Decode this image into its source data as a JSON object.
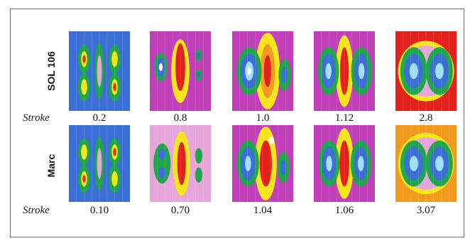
{
  "rows": [
    {
      "label": "SOL 106",
      "stroke_label": "Stroke",
      "values": [
        "0.2",
        "0.8",
        "1.0",
        "1.12",
        "2.8"
      ]
    },
    {
      "label": "Marc",
      "stroke_label": "Stroke",
      "values": [
        "0.10",
        "0.70",
        "1.04",
        "1.06",
        "3.07"
      ]
    }
  ],
  "colors": {
    "blue": "#3c6fd6",
    "cyan": "#9fe0f5",
    "green": "#1fa54a",
    "magenta": "#c13fb8",
    "pink": "#e7a6d9",
    "yellow": "#f4e51d",
    "orange": "#f29a1e",
    "red": "#e3211c",
    "white": "#ffffff"
  },
  "plots": [
    [
      {
        "bg": "blue",
        "shapes": [
          [
            "ellipse",
            0.25,
            0.35,
            0.1,
            0.18,
            "green"
          ],
          [
            "ellipse",
            0.25,
            0.7,
            0.1,
            0.18,
            "green"
          ],
          [
            "ellipse",
            0.5,
            0.5,
            0.08,
            0.35,
            "green"
          ],
          [
            "ellipse",
            0.75,
            0.35,
            0.1,
            0.18,
            "green"
          ],
          [
            "ellipse",
            0.75,
            0.7,
            0.1,
            0.18,
            "green"
          ],
          [
            "ellipse",
            0.25,
            0.35,
            0.05,
            0.1,
            "yellow"
          ],
          [
            "ellipse",
            0.25,
            0.7,
            0.05,
            0.1,
            "yellow"
          ],
          [
            "ellipse",
            0.5,
            0.5,
            0.04,
            0.2,
            "pink"
          ],
          [
            "ellipse",
            0.75,
            0.35,
            0.05,
            0.1,
            "yellow"
          ],
          [
            "ellipse",
            0.75,
            0.7,
            0.05,
            0.1,
            "yellow"
          ],
          [
            "ellipse",
            0.25,
            0.35,
            0.025,
            0.05,
            "red"
          ],
          [
            "ellipse",
            0.75,
            0.7,
            0.025,
            0.05,
            "red"
          ]
        ]
      },
      {
        "bg": "magenta",
        "shapes": [
          [
            "ellipse",
            0.5,
            0.5,
            0.15,
            0.4,
            "yellow"
          ],
          [
            "ellipse",
            0.5,
            0.45,
            0.08,
            0.3,
            "red"
          ],
          [
            "ellipse",
            0.18,
            0.45,
            0.11,
            0.18,
            "green"
          ],
          [
            "ellipse",
            0.18,
            0.45,
            0.07,
            0.12,
            "blue"
          ],
          [
            "ellipse",
            0.18,
            0.45,
            0.03,
            0.05,
            "white"
          ],
          [
            "ellipse",
            0.8,
            0.3,
            0.06,
            0.07,
            "green"
          ],
          [
            "ellipse",
            0.8,
            0.55,
            0.06,
            0.07,
            "green"
          ],
          [
            "ellipse",
            0.8,
            0.3,
            0.03,
            0.035,
            "blue"
          ],
          [
            "ellipse",
            0.8,
            0.55,
            0.03,
            0.035,
            "blue"
          ]
        ]
      },
      {
        "bg": "magenta",
        "shapes": [
          [
            "ellipse",
            0.58,
            0.5,
            0.2,
            0.48,
            "yellow"
          ],
          [
            "ellipse",
            0.58,
            0.5,
            0.12,
            0.34,
            "orange"
          ],
          [
            "ellipse",
            0.58,
            0.5,
            0.06,
            0.2,
            "red"
          ],
          [
            "ellipse",
            0.28,
            0.5,
            0.2,
            0.3,
            "green"
          ],
          [
            "ellipse",
            0.28,
            0.5,
            0.14,
            0.22,
            "blue"
          ],
          [
            "ellipse",
            0.28,
            0.5,
            0.07,
            0.12,
            "cyan"
          ],
          [
            "ellipse",
            0.28,
            0.5,
            0.03,
            0.05,
            "white"
          ],
          [
            "ellipse",
            0.86,
            0.55,
            0.1,
            0.2,
            "green"
          ],
          [
            "ellipse",
            0.86,
            0.55,
            0.05,
            0.1,
            "blue"
          ]
        ]
      },
      {
        "bg": "magenta",
        "shapes": [
          [
            "ellipse",
            0.5,
            0.5,
            0.14,
            0.45,
            "yellow"
          ],
          [
            "ellipse",
            0.5,
            0.5,
            0.07,
            0.3,
            "red"
          ],
          [
            "ellipse",
            0.24,
            0.5,
            0.17,
            0.3,
            "green"
          ],
          [
            "ellipse",
            0.24,
            0.5,
            0.11,
            0.22,
            "blue"
          ],
          [
            "ellipse",
            0.24,
            0.5,
            0.05,
            0.1,
            "cyan"
          ],
          [
            "ellipse",
            0.78,
            0.5,
            0.17,
            0.3,
            "green"
          ],
          [
            "ellipse",
            0.78,
            0.5,
            0.11,
            0.22,
            "blue"
          ],
          [
            "ellipse",
            0.78,
            0.5,
            0.05,
            0.1,
            "cyan"
          ]
        ]
      },
      {
        "bg": "red",
        "shapes": [
          [
            "ellipse",
            0.5,
            0.5,
            0.46,
            0.38,
            "yellow"
          ],
          [
            "ellipse",
            0.5,
            0.5,
            0.42,
            0.32,
            "pink"
          ],
          [
            "ellipse",
            0.3,
            0.5,
            0.22,
            0.3,
            "green"
          ],
          [
            "ellipse",
            0.72,
            0.5,
            0.22,
            0.3,
            "green"
          ],
          [
            "ellipse",
            0.3,
            0.5,
            0.15,
            0.22,
            "blue"
          ],
          [
            "ellipse",
            0.72,
            0.5,
            0.15,
            0.22,
            "blue"
          ],
          [
            "ellipse",
            0.3,
            0.5,
            0.07,
            0.1,
            "cyan"
          ],
          [
            "ellipse",
            0.72,
            0.5,
            0.07,
            0.1,
            "cyan"
          ]
        ]
      }
    ],
    [
      {
        "bg": "blue",
        "shapes": [
          [
            "ellipse",
            0.25,
            0.35,
            0.1,
            0.18,
            "green"
          ],
          [
            "ellipse",
            0.25,
            0.7,
            0.1,
            0.18,
            "green"
          ],
          [
            "ellipse",
            0.5,
            0.5,
            0.08,
            0.35,
            "green"
          ],
          [
            "ellipse",
            0.75,
            0.35,
            0.1,
            0.18,
            "green"
          ],
          [
            "ellipse",
            0.75,
            0.7,
            0.1,
            0.18,
            "green"
          ],
          [
            "ellipse",
            0.25,
            0.35,
            0.05,
            0.1,
            "yellow"
          ],
          [
            "ellipse",
            0.25,
            0.7,
            0.05,
            0.1,
            "yellow"
          ],
          [
            "ellipse",
            0.5,
            0.5,
            0.04,
            0.2,
            "pink"
          ],
          [
            "ellipse",
            0.75,
            0.35,
            0.05,
            0.1,
            "yellow"
          ],
          [
            "ellipse",
            0.75,
            0.7,
            0.05,
            0.1,
            "yellow"
          ],
          [
            "ellipse",
            0.25,
            0.7,
            0.025,
            0.05,
            "red"
          ],
          [
            "ellipse",
            0.75,
            0.35,
            0.025,
            0.05,
            "red"
          ]
        ]
      },
      {
        "bg": "pink",
        "shapes": [
          [
            "ellipse",
            0.52,
            0.5,
            0.14,
            0.42,
            "yellow"
          ],
          [
            "ellipse",
            0.52,
            0.5,
            0.07,
            0.28,
            "red"
          ],
          [
            "ellipse",
            0.2,
            0.5,
            0.14,
            0.26,
            "green"
          ],
          [
            "ellipse",
            0.2,
            0.38,
            0.06,
            0.07,
            "blue"
          ],
          [
            "ellipse",
            0.2,
            0.62,
            0.06,
            0.07,
            "blue"
          ],
          [
            "ellipse",
            0.8,
            0.4,
            0.06,
            0.1,
            "green"
          ],
          [
            "ellipse",
            0.8,
            0.65,
            0.06,
            0.1,
            "green"
          ]
        ]
      },
      {
        "bg": "magenta",
        "shapes": [
          [
            "ellipse",
            0.55,
            0.5,
            0.18,
            0.48,
            "yellow"
          ],
          [
            "ellipse",
            0.55,
            0.5,
            0.1,
            0.3,
            "red"
          ],
          [
            "ellipse",
            0.26,
            0.5,
            0.18,
            0.3,
            "green"
          ],
          [
            "ellipse",
            0.26,
            0.5,
            0.12,
            0.22,
            "blue"
          ],
          [
            "ellipse",
            0.26,
            0.5,
            0.05,
            0.1,
            "cyan"
          ],
          [
            "ellipse",
            0.84,
            0.55,
            0.1,
            0.2,
            "green"
          ],
          [
            "ellipse",
            0.84,
            0.55,
            0.05,
            0.1,
            "blue"
          ],
          [
            "ellipse",
            0.64,
            0.2,
            0.04,
            0.05,
            "white"
          ]
        ]
      },
      {
        "bg": "magenta",
        "shapes": [
          [
            "ellipse",
            0.5,
            0.5,
            0.15,
            0.46,
            "yellow"
          ],
          [
            "ellipse",
            0.5,
            0.5,
            0.08,
            0.3,
            "red"
          ],
          [
            "ellipse",
            0.25,
            0.5,
            0.17,
            0.3,
            "green"
          ],
          [
            "ellipse",
            0.25,
            0.5,
            0.11,
            0.22,
            "blue"
          ],
          [
            "ellipse",
            0.25,
            0.5,
            0.05,
            0.1,
            "cyan"
          ],
          [
            "ellipse",
            0.77,
            0.5,
            0.17,
            0.3,
            "green"
          ],
          [
            "ellipse",
            0.77,
            0.5,
            0.11,
            0.22,
            "blue"
          ],
          [
            "ellipse",
            0.77,
            0.5,
            0.05,
            0.1,
            "cyan"
          ]
        ]
      },
      {
        "bg": "orange",
        "shapes": [
          [
            "ellipse",
            0.5,
            0.5,
            0.46,
            0.4,
            "yellow"
          ],
          [
            "ellipse",
            0.5,
            0.5,
            0.42,
            0.34,
            "pink"
          ],
          [
            "ellipse",
            0.3,
            0.5,
            0.22,
            0.3,
            "green"
          ],
          [
            "ellipse",
            0.72,
            0.5,
            0.22,
            0.3,
            "green"
          ],
          [
            "ellipse",
            0.3,
            0.5,
            0.15,
            0.22,
            "blue"
          ],
          [
            "ellipse",
            0.72,
            0.5,
            0.15,
            0.22,
            "blue"
          ],
          [
            "ellipse",
            0.3,
            0.5,
            0.07,
            0.1,
            "cyan"
          ],
          [
            "ellipse",
            0.72,
            0.5,
            0.07,
            0.1,
            "cyan"
          ]
        ]
      }
    ]
  ]
}
